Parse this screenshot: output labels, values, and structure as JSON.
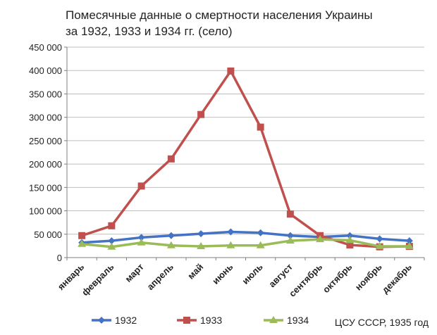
{
  "chart_data": {
    "type": "line",
    "title": [
      "Помесячные данные о смертности населения Украины",
      "за 1932, 1933 и 1934 гг. (село)"
    ],
    "source": "ЦСУ СССР, 1935 год",
    "xlabel": "",
    "ylabel": "",
    "ylim": [
      0,
      450000
    ],
    "ytick_labels": [
      "0",
      "50 000",
      "100 000",
      "150 000",
      "200 000",
      "250 000",
      "300 000",
      "350 000",
      "400 000",
      "450 000"
    ],
    "grid": true,
    "legend_position": "bottom",
    "categories": [
      "январь",
      "февраль",
      "март",
      "апрель",
      "май",
      "июнь",
      "июль",
      "август",
      "сентябрь",
      "октябрь",
      "ноябрь",
      "декабрь"
    ],
    "series": [
      {
        "name": "1932",
        "color": "#4472c4",
        "marker": "diamond",
        "values": [
          32000,
          36000,
          43000,
          47000,
          51000,
          55000,
          53000,
          47000,
          44000,
          47000,
          40000,
          36000
        ]
      },
      {
        "name": "1933",
        "color": "#c0504d",
        "marker": "square",
        "values": [
          47000,
          68000,
          153000,
          211000,
          306000,
          399000,
          279000,
          93000,
          47000,
          27000,
          23000,
          24000
        ]
      },
      {
        "name": "1934",
        "color": "#9bbb59",
        "marker": "triangle",
        "values": [
          29000,
          23000,
          32000,
          26000,
          24000,
          26000,
          26000,
          36000,
          39000,
          37000,
          24000,
          24000
        ]
      }
    ]
  }
}
